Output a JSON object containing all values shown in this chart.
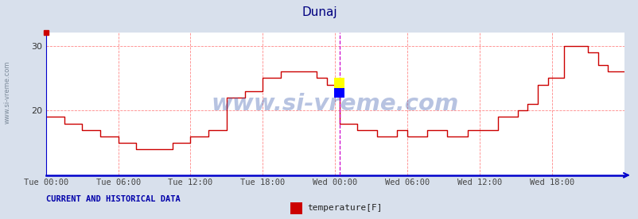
{
  "title": "Dunaj",
  "title_color": "#000080",
  "bg_color": "#d8e0ec",
  "plot_bg_color": "#ffffff",
  "ylim": [
    10,
    32
  ],
  "yticks": [
    20,
    30
  ],
  "xlim": [
    0,
    576
  ],
  "xtick_labels": [
    "Tue 00:00",
    "Tue 06:00",
    "Tue 12:00",
    "Tue 18:00",
    "Wed 00:00",
    "Wed 06:00",
    "Wed 12:00",
    "Wed 18:00"
  ],
  "xtick_positions": [
    0,
    72,
    144,
    216,
    288,
    360,
    432,
    504
  ],
  "grid_color": "#ff8888",
  "line_color": "#cc0000",
  "vline_color": "#cc00cc",
  "vline_pos": 293,
  "watermark": "www.si-vreme.com",
  "watermark_color": "#3355aa",
  "watermark_alpha": 0.35,
  "bottom_label": "CURRENT AND HISTORICAL DATA",
  "legend_label": "temperature[F]",
  "legend_color": "#cc0000",
  "axis_color": "#0000cc",
  "left_text": "www.si-vreme.com",
  "temp_data": [
    [
      0,
      19
    ],
    [
      18,
      18
    ],
    [
      36,
      17
    ],
    [
      54,
      16
    ],
    [
      72,
      15
    ],
    [
      90,
      14
    ],
    [
      108,
      14
    ],
    [
      126,
      15
    ],
    [
      144,
      16
    ],
    [
      162,
      17
    ],
    [
      180,
      22
    ],
    [
      198,
      23
    ],
    [
      216,
      25
    ],
    [
      234,
      26
    ],
    [
      252,
      26
    ],
    [
      270,
      25
    ],
    [
      280,
      24
    ],
    [
      288,
      23
    ],
    [
      293,
      18
    ],
    [
      310,
      17
    ],
    [
      330,
      16
    ],
    [
      350,
      17
    ],
    [
      360,
      16
    ],
    [
      380,
      17
    ],
    [
      400,
      16
    ],
    [
      420,
      17
    ],
    [
      432,
      17
    ],
    [
      450,
      19
    ],
    [
      460,
      19
    ],
    [
      470,
      20
    ],
    [
      480,
      21
    ],
    [
      490,
      24
    ],
    [
      500,
      25
    ],
    [
      510,
      25
    ],
    [
      516,
      30
    ],
    [
      530,
      30
    ],
    [
      540,
      29
    ],
    [
      550,
      27
    ],
    [
      560,
      26
    ],
    [
      570,
      26
    ],
    [
      576,
      26
    ]
  ]
}
